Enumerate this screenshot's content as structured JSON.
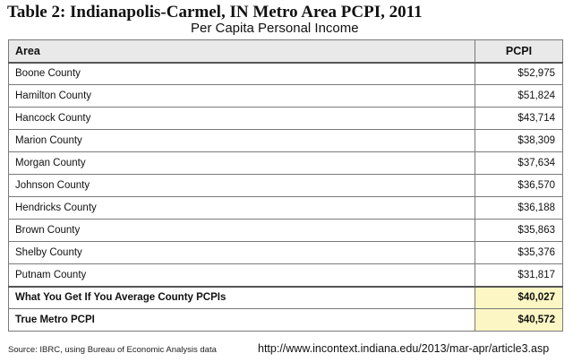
{
  "title": "Table 2: Indianapolis-Carmel, IN Metro Area PCPI, 2011",
  "subtitle": "Per Capita Personal Income",
  "table": {
    "headers": [
      "Area",
      "PCPI"
    ],
    "rows": [
      {
        "area": "Boone County",
        "pcpi": "$52,975"
      },
      {
        "area": "Hamilton County",
        "pcpi": "$51,824"
      },
      {
        "area": "Hancock County",
        "pcpi": "$43,714"
      },
      {
        "area": "Marion County",
        "pcpi": "$38,309"
      },
      {
        "area": "Morgan County",
        "pcpi": "$37,634"
      },
      {
        "area": "Johnson County",
        "pcpi": "$36,570"
      },
      {
        "area": "Hendricks County",
        "pcpi": "$36,188"
      },
      {
        "area": "Brown County",
        "pcpi": "$35,863"
      },
      {
        "area": "Shelby County",
        "pcpi": "$35,376"
      },
      {
        "area": "Putnam County",
        "pcpi": "$31,817"
      }
    ],
    "summary": [
      {
        "area": "What You Get If You Average County PCPIs",
        "pcpi": "$40,027"
      },
      {
        "area": "True Metro PCPI",
        "pcpi": "$40,572"
      }
    ]
  },
  "source": "Source: IBRC, using Bureau of Economic Analysis data",
  "url": "http://www.incontext.indiana.edu/2013/mar-apr/article3.asp",
  "colors": {
    "header_bg": "#e9e9e9",
    "highlight_bg": "#fcf6c4",
    "border": "#7a7a7a"
  }
}
